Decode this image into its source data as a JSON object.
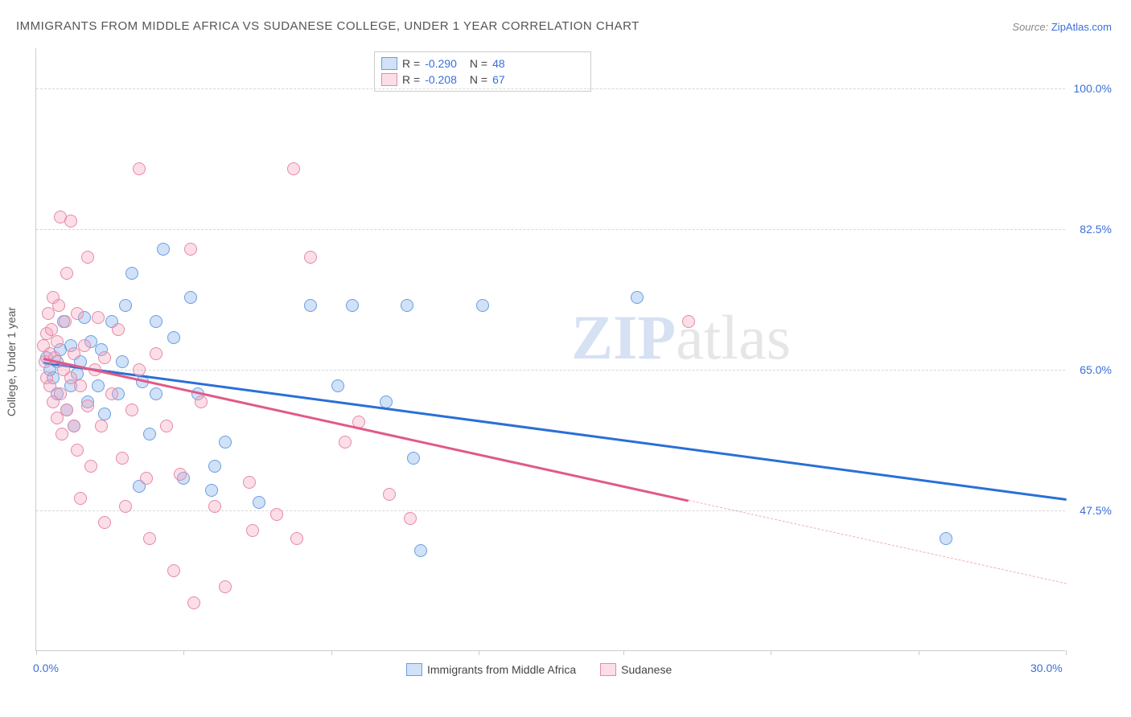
{
  "title": "IMMIGRANTS FROM MIDDLE AFRICA VS SUDANESE COLLEGE, UNDER 1 YEAR CORRELATION CHART",
  "source_label": "Source:",
  "source_link": "ZipAtlas.com",
  "ylabel": "College, Under 1 year",
  "watermark_bold": "ZIP",
  "watermark_rest": "atlas",
  "chart": {
    "type": "scatter",
    "xlim": [
      0,
      30
    ],
    "ylim": [
      30,
      105
    ],
    "xtick_positions": [
      0,
      4.3,
      8.6,
      12.9,
      17.1,
      21.4,
      25.7,
      30
    ],
    "ytick_positions": [
      47.5,
      65.0,
      82.5,
      100.0
    ],
    "ytick_labels": [
      "47.5%",
      "65.0%",
      "82.5%",
      "100.0%"
    ],
    "xlim_labels": [
      "0.0%",
      "30.0%"
    ],
    "background": "#ffffff",
    "grid_color": "#d8d8d8",
    "point_radius": 8,
    "point_stroke_width": 1.5,
    "series": [
      {
        "name": "Immigrants from Middle Africa",
        "fill": "rgba(120,170,235,0.35)",
        "stroke": "#6a9fe0",
        "trend_color": "#2a6fd6",
        "r": -0.29,
        "n": 48,
        "trend": {
          "x1": 0.2,
          "y1": 66.0,
          "x2": 30.0,
          "y2": 49.0
        },
        "trend_solid_until_x": 30.0,
        "points": [
          [
            0.3,
            66.5
          ],
          [
            0.4,
            65
          ],
          [
            0.5,
            64
          ],
          [
            0.6,
            66
          ],
          [
            0.6,
            62
          ],
          [
            0.7,
            67.5
          ],
          [
            0.8,
            71
          ],
          [
            0.9,
            60
          ],
          [
            1.0,
            63
          ],
          [
            1.0,
            68
          ],
          [
            1.1,
            58
          ],
          [
            1.2,
            64.5
          ],
          [
            1.3,
            66
          ],
          [
            1.4,
            71.5
          ],
          [
            1.5,
            61
          ],
          [
            1.6,
            68.5
          ],
          [
            1.8,
            63
          ],
          [
            1.9,
            67.5
          ],
          [
            2.0,
            59.5
          ],
          [
            2.2,
            71
          ],
          [
            2.4,
            62
          ],
          [
            2.5,
            66
          ],
          [
            2.6,
            73
          ],
          [
            2.8,
            77
          ],
          [
            3.0,
            50.5
          ],
          [
            3.1,
            63.5
          ],
          [
            3.3,
            57
          ],
          [
            3.5,
            71
          ],
          [
            3.5,
            62
          ],
          [
            3.7,
            80
          ],
          [
            4.0,
            69
          ],
          [
            4.3,
            51.5
          ],
          [
            4.5,
            74
          ],
          [
            4.7,
            62
          ],
          [
            5.1,
            50
          ],
          [
            5.2,
            53
          ],
          [
            5.5,
            56
          ],
          [
            6.5,
            48.5
          ],
          [
            8.0,
            73
          ],
          [
            8.8,
            63
          ],
          [
            9.2,
            73
          ],
          [
            10.2,
            61
          ],
          [
            10.8,
            73
          ],
          [
            11.0,
            54
          ],
          [
            11.2,
            42.5
          ],
          [
            13.0,
            73
          ],
          [
            17.5,
            74
          ],
          [
            26.5,
            44
          ]
        ]
      },
      {
        "name": "Sudanese",
        "fill": "rgba(245,160,185,0.35)",
        "stroke": "#e48aa8",
        "trend_color": "#e05a87",
        "r": -0.208,
        "n": 67,
        "trend": {
          "x1": 0.2,
          "y1": 66.5,
          "x2": 30.0,
          "y2": 38.5
        },
        "trend_solid_until_x": 19.0,
        "points": [
          [
            0.2,
            68
          ],
          [
            0.25,
            66
          ],
          [
            0.3,
            69.5
          ],
          [
            0.3,
            64
          ],
          [
            0.35,
            72
          ],
          [
            0.4,
            67
          ],
          [
            0.4,
            63
          ],
          [
            0.45,
            70
          ],
          [
            0.5,
            74
          ],
          [
            0.5,
            61
          ],
          [
            0.55,
            66.5
          ],
          [
            0.6,
            59
          ],
          [
            0.6,
            68.5
          ],
          [
            0.65,
            73
          ],
          [
            0.7,
            84
          ],
          [
            0.7,
            62
          ],
          [
            0.75,
            57
          ],
          [
            0.8,
            65
          ],
          [
            0.85,
            71
          ],
          [
            0.9,
            60
          ],
          [
            0.9,
            77
          ],
          [
            1.0,
            83.5
          ],
          [
            1.0,
            64
          ],
          [
            1.1,
            58
          ],
          [
            1.1,
            67
          ],
          [
            1.2,
            72
          ],
          [
            1.2,
            55
          ],
          [
            1.3,
            49
          ],
          [
            1.3,
            63
          ],
          [
            1.4,
            68
          ],
          [
            1.5,
            79
          ],
          [
            1.5,
            60.5
          ],
          [
            1.6,
            53
          ],
          [
            1.7,
            65
          ],
          [
            1.8,
            71.5
          ],
          [
            1.9,
            58
          ],
          [
            2.0,
            46
          ],
          [
            2.0,
            66.5
          ],
          [
            2.2,
            62
          ],
          [
            2.4,
            70
          ],
          [
            2.5,
            54
          ],
          [
            2.6,
            48
          ],
          [
            2.8,
            60
          ],
          [
            3.0,
            90
          ],
          [
            3.0,
            65
          ],
          [
            3.2,
            51.5
          ],
          [
            3.3,
            44
          ],
          [
            3.5,
            67
          ],
          [
            3.8,
            58
          ],
          [
            4.0,
            40
          ],
          [
            4.2,
            52
          ],
          [
            4.5,
            80
          ],
          [
            4.6,
            36
          ],
          [
            4.8,
            61
          ],
          [
            5.2,
            48
          ],
          [
            5.5,
            38
          ],
          [
            6.2,
            51
          ],
          [
            6.3,
            45
          ],
          [
            7.0,
            47
          ],
          [
            7.5,
            90
          ],
          [
            7.6,
            44
          ],
          [
            8.0,
            79
          ],
          [
            9.0,
            56
          ],
          [
            9.4,
            58.5
          ],
          [
            10.3,
            49.5
          ],
          [
            10.9,
            46.5
          ],
          [
            19.0,
            71
          ]
        ]
      }
    ]
  },
  "legend_labels": [
    "Immigrants from Middle Africa",
    "Sudanese"
  ]
}
